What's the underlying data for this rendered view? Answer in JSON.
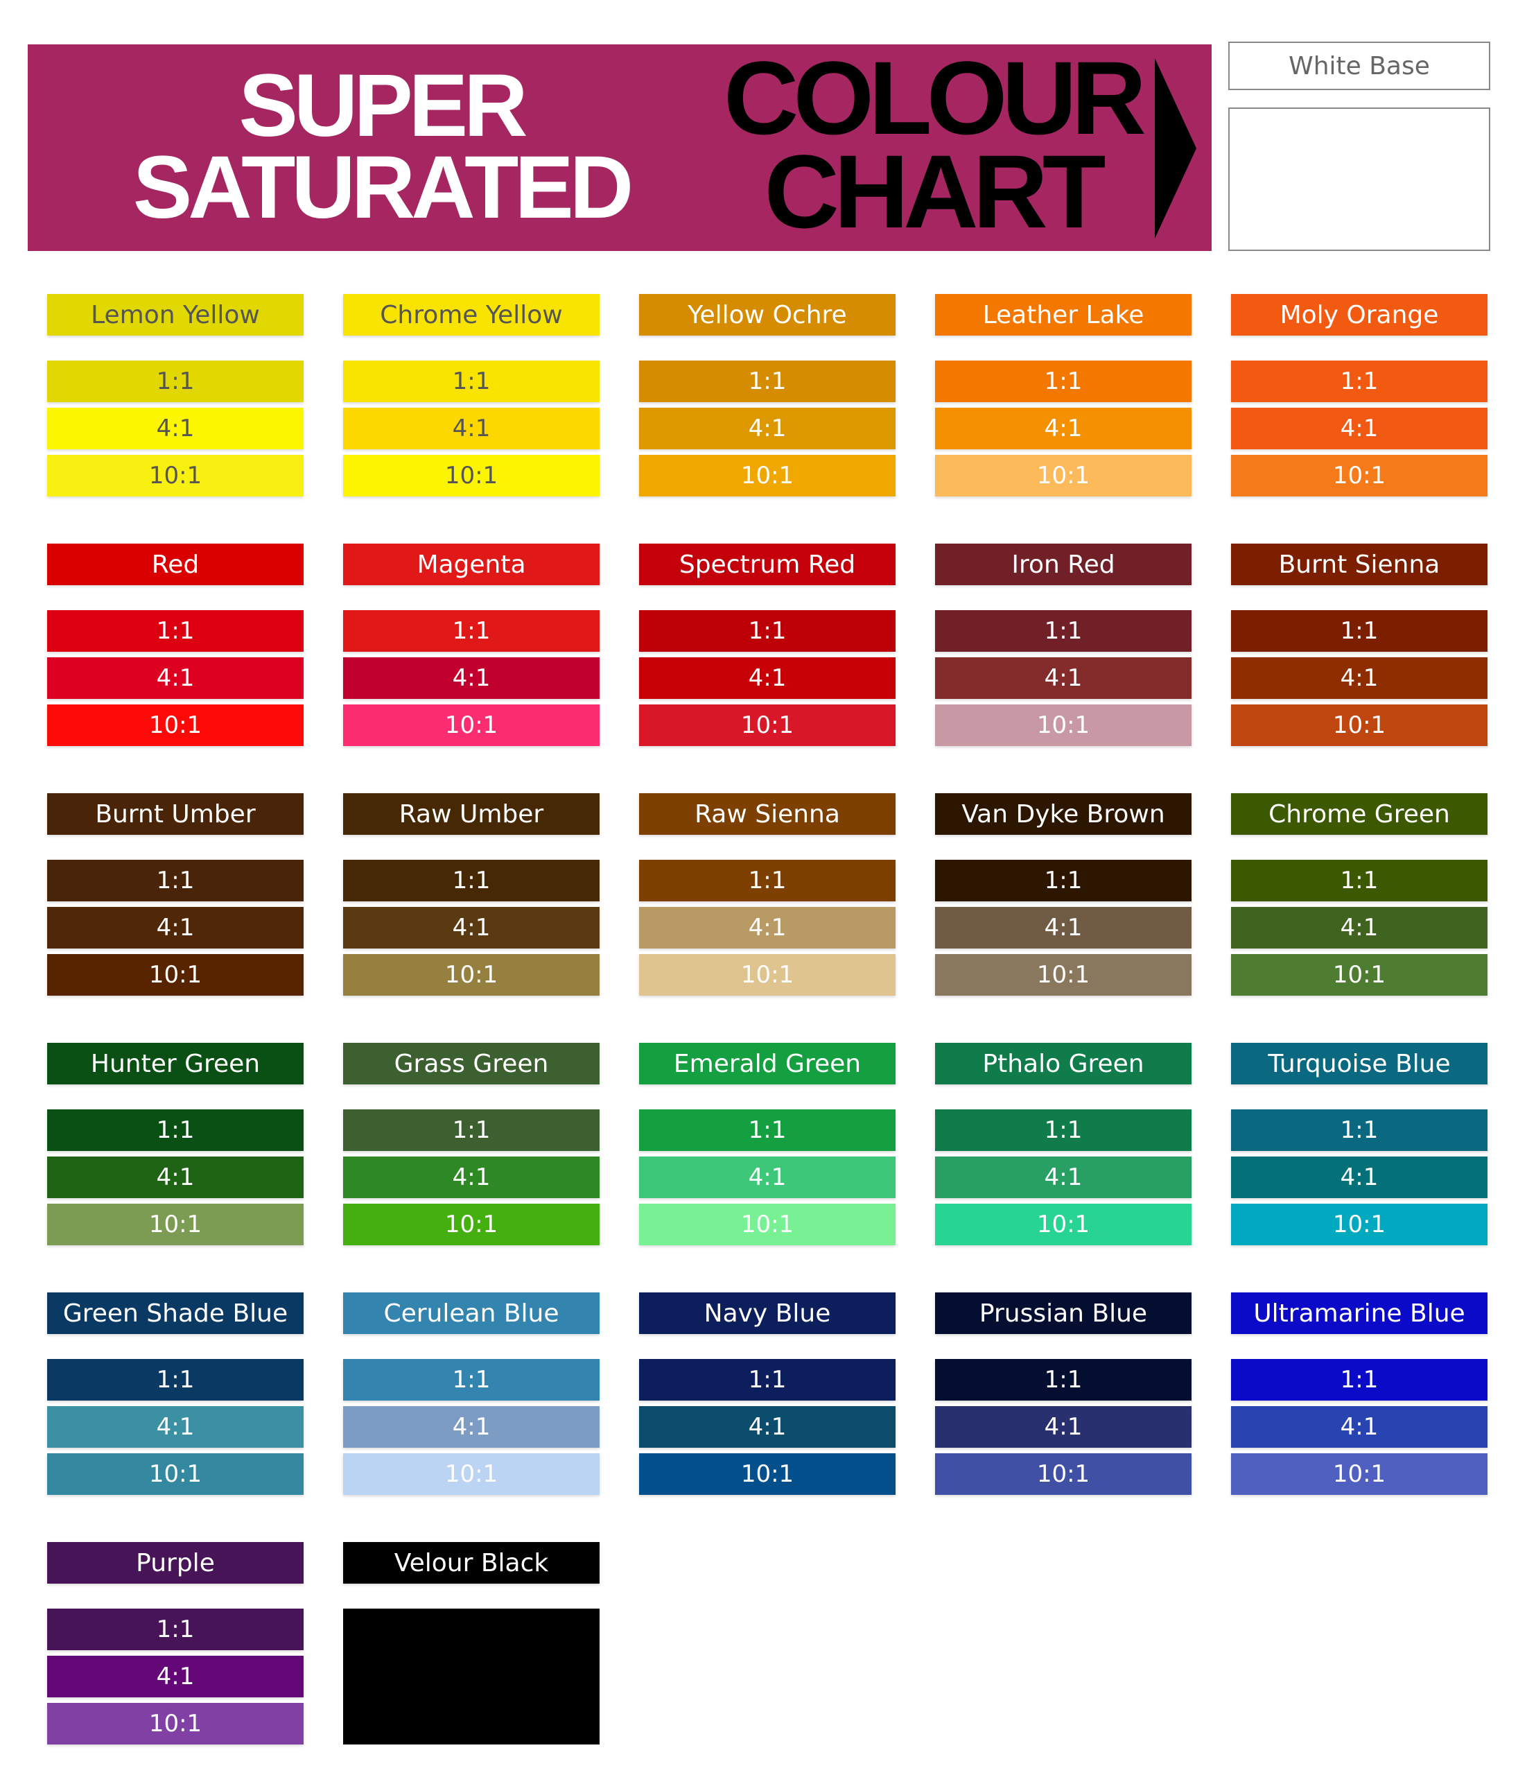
{
  "header": {
    "line1": "SUPER",
    "line2": "SATURATED",
    "line3": "COLOUR",
    "line4": "CHART",
    "background": "#a52660"
  },
  "white_base": {
    "label": "White Base",
    "color": "#ffffff"
  },
  "ratios": [
    "1:1",
    "4:1",
    "10:1"
  ],
  "colours": [
    {
      "name": "Lemon Yellow",
      "title_color": "#e0d800",
      "swatches": [
        "#e0d800",
        "#fcf600",
        "#f8f010"
      ],
      "dark_text": true
    },
    {
      "name": "Chrome Yellow",
      "title_color": "#f8e400",
      "swatches": [
        "#f8e400",
        "#fdd800",
        "#fcf400"
      ],
      "dark_text": true
    },
    {
      "name": "Yellow Ochre",
      "title_color": "#d68c00",
      "swatches": [
        "#d68c00",
        "#dd9800",
        "#f0a800"
      ]
    },
    {
      "name": "Leather Lake",
      "title_color": "#f47800",
      "swatches": [
        "#f47800",
        "#f59000",
        "#fdba5a"
      ]
    },
    {
      "name": "Moly Orange",
      "title_color": "#f25a12",
      "swatches": [
        "#f25a12",
        "#f15812",
        "#f57a1a"
      ]
    },
    {
      "name": "Red",
      "title_color": "#db0000",
      "swatches": [
        "#dd0010",
        "#de0020",
        "#fc0a08"
      ]
    },
    {
      "name": "Magenta",
      "title_color": "#e01818",
      "swatches": [
        "#e01818",
        "#c20030",
        "#fc2c70"
      ]
    },
    {
      "name": "Spectrum Red",
      "title_color": "#c4000a",
      "swatches": [
        "#bd0008",
        "#c60004",
        "#d81828"
      ]
    },
    {
      "name": "Iron Red",
      "title_color": "#722028",
      "swatches": [
        "#722028",
        "#842c2c",
        "#c898a4"
      ]
    },
    {
      "name": "Burnt Sienna",
      "title_color": "#7c1e00",
      "swatches": [
        "#7c1e00",
        "#8e2e00",
        "#c04610"
      ]
    },
    {
      "name": "Burnt Umber",
      "title_color": "#4a2408",
      "swatches": [
        "#4a2408",
        "#502808",
        "#582400"
      ]
    },
    {
      "name": "Raw Umber",
      "title_color": "#462804",
      "swatches": [
        "#462804",
        "#5a3a10",
        "#968040"
      ]
    },
    {
      "name": "Raw Sienna",
      "title_color": "#7e4000",
      "swatches": [
        "#7e4000",
        "#b89a64",
        "#e0c490"
      ]
    },
    {
      "name": "Van Dyke Brown",
      "title_color": "#2c1600",
      "swatches": [
        "#2c1600",
        "#705c44",
        "#8a785e"
      ]
    },
    {
      "name": "Chrome Green",
      "title_color": "#3c5800",
      "swatches": [
        "#3c5800",
        "#406420",
        "#4e7c30"
      ]
    },
    {
      "name": "Hunter Green",
      "title_color": "#0a5014",
      "swatches": [
        "#0a5014",
        "#1e6414",
        "#7c9c54"
      ]
    },
    {
      "name": "Grass Green",
      "title_color": "#3c6030",
      "swatches": [
        "#3c6030",
        "#2e8824",
        "#44b010"
      ]
    },
    {
      "name": "Emerald Green",
      "title_color": "#14a040",
      "swatches": [
        "#14a040",
        "#3cc878",
        "#78f094"
      ]
    },
    {
      "name": "Pthalo Green",
      "title_color": "#107c4c",
      "swatches": [
        "#107c4c",
        "#28a064",
        "#28d494"
      ]
    },
    {
      "name": "Turquoise Blue",
      "title_color": "#0a6880",
      "swatches": [
        "#0a6880",
        "#047078",
        "#00a8c0"
      ]
    },
    {
      "name": "Green Shade Blue",
      "title_color": "#0a3a64",
      "swatches": [
        "#0a3a64",
        "#3c90a4",
        "#3488a0"
      ]
    },
    {
      "name": "Cerulean Blue",
      "title_color": "#3484b0",
      "swatches": [
        "#3484b0",
        "#7c9cc4",
        "#bcd4f4"
      ]
    },
    {
      "name": "Navy Blue",
      "title_color": "#0c1e5c",
      "swatches": [
        "#0c1e5c",
        "#0c4c6c",
        "#04508c"
      ]
    },
    {
      "name": "Prussian Blue",
      "title_color": "#040e30",
      "swatches": [
        "#040e30",
        "#283070",
        "#4050a4"
      ]
    },
    {
      "name": "Ultramarine Blue",
      "title_color": "#0a0ac8",
      "swatches": [
        "#0a0ac8",
        "#2844b0",
        "#5060c0"
      ]
    },
    {
      "name": "Purple",
      "title_color": "#481458",
      "swatches": [
        "#481458",
        "#640878",
        "#8040a4"
      ]
    },
    {
      "name": "Velour Black",
      "title_color": "#000000",
      "solid": "#000000"
    }
  ]
}
